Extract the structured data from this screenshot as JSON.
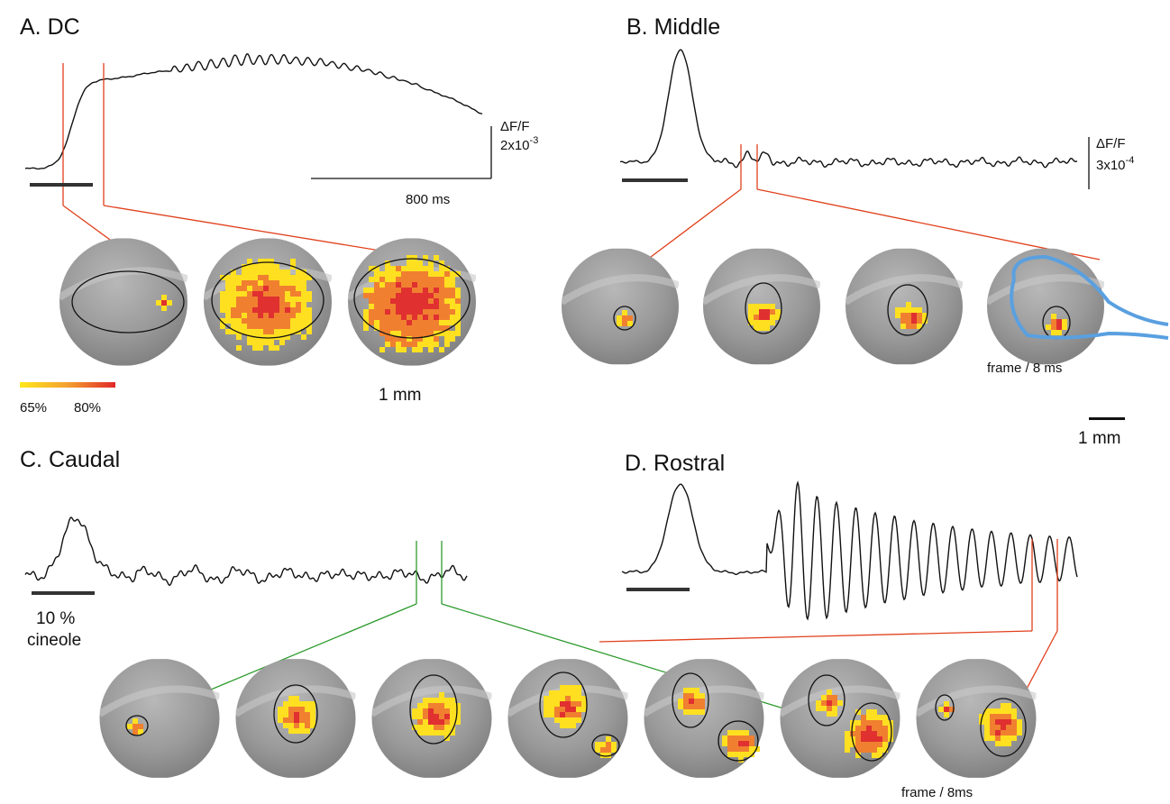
{
  "panel_a": {
    "title": "A. DC",
    "scale_label": "ΔF/F",
    "scale_value": "2x10",
    "scale_exponent": "-3",
    "time_scale": "800 ms",
    "colorbar": {
      "min_label": "65%",
      "max_label": "80%"
    },
    "size_scale": "1 mm"
  },
  "panel_b": {
    "title": "B. Middle",
    "scale_label": "ΔF/F",
    "scale_value": "3x10",
    "scale_exponent": "-4",
    "frame_rate": "frame / 8 ms",
    "size_scale": "1 mm"
  },
  "panel_c": {
    "title": "C. Caudal",
    "stimulus_value": "10 %",
    "stimulus_name": "cineole"
  },
  "panel_d": {
    "title": "D. Rostral",
    "frame_rate": "frame / 8ms"
  }
}
